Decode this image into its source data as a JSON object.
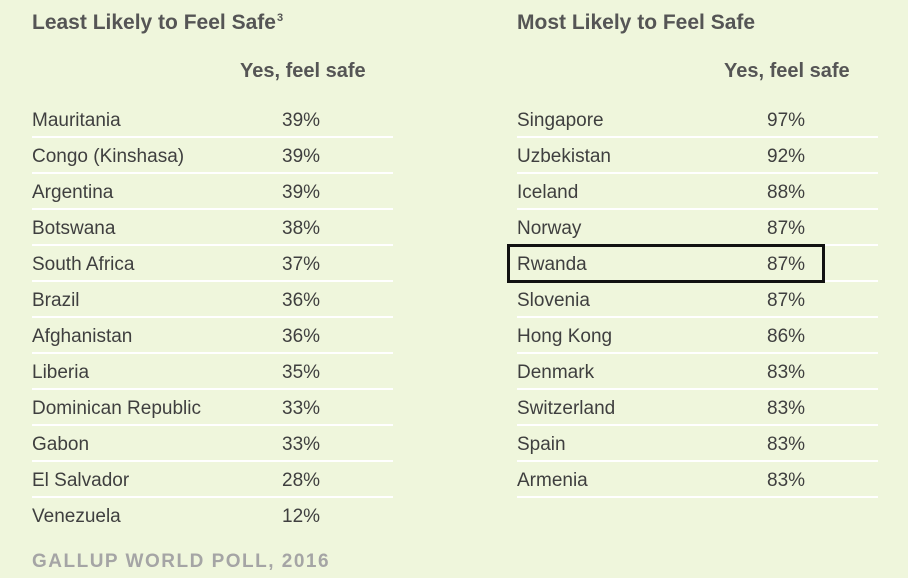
{
  "chart_data": [
    {
      "type": "table",
      "title": "Least Likely to Feel Safe",
      "title_footnote": "3",
      "column_header": "Yes, feel safe",
      "rows": [
        {
          "country": "Mauritania",
          "value": "39%"
        },
        {
          "country": "Congo (Kinshasa)",
          "value": "39%"
        },
        {
          "country": "Argentina",
          "value": "39%"
        },
        {
          "country": "Botswana",
          "value": "38%"
        },
        {
          "country": "South Africa",
          "value": "37%"
        },
        {
          "country": "Brazil",
          "value": "36%"
        },
        {
          "country": "Afghanistan",
          "value": "36%"
        },
        {
          "country": "Liberia",
          "value": "35%"
        },
        {
          "country": "Dominican Republic",
          "value": "33%"
        },
        {
          "country": "Gabon",
          "value": "33%"
        },
        {
          "country": "El Salvador",
          "value": "28%"
        },
        {
          "country": "Venezuela",
          "value": "12%"
        }
      ]
    },
    {
      "type": "table",
      "title": "Most Likely to Feel Safe",
      "column_header": "Yes, feel safe",
      "highlighted_row": "Rwanda",
      "rows": [
        {
          "country": "Singapore",
          "value": "97%"
        },
        {
          "country": "Uzbekistan",
          "value": "92%"
        },
        {
          "country": "Iceland",
          "value": "88%"
        },
        {
          "country": "Norway",
          "value": "87%"
        },
        {
          "country": "Rwanda",
          "value": "87%"
        },
        {
          "country": "Slovenia",
          "value": "87%"
        },
        {
          "country": "Hong Kong",
          "value": "86%"
        },
        {
          "country": "Denmark",
          "value": "83%"
        },
        {
          "country": "Switzerland",
          "value": "83%"
        },
        {
          "country": "Spain",
          "value": "83%"
        },
        {
          "country": "Armenia",
          "value": "83%"
        }
      ]
    }
  ],
  "source": "GALLUP WORLD POLL, 2016",
  "colors": {
    "background": "#eff6dc",
    "row_rule": "#ffffff",
    "highlight_border": "#111111",
    "source_text": "#a5a5a5"
  }
}
